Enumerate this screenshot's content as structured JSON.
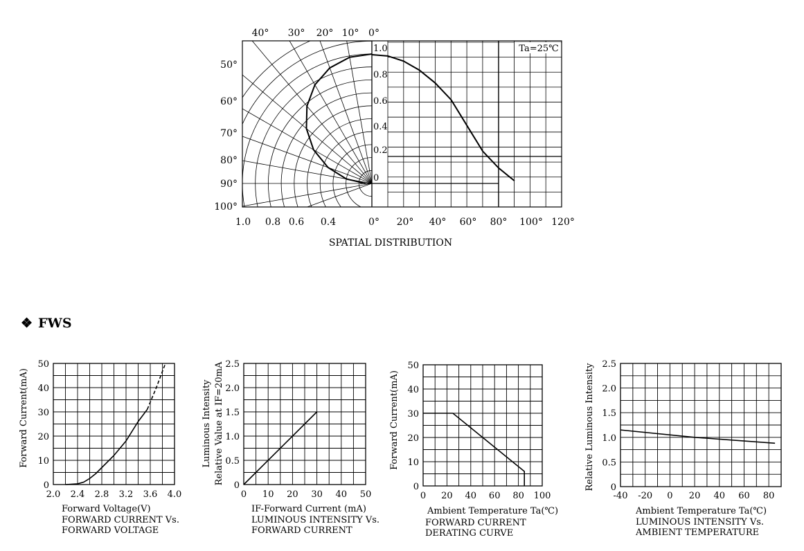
{
  "section": {
    "bullet": "❖",
    "title": "FWS"
  },
  "chart_data": [
    {
      "type": "polar-line",
      "caption": "SPATIAL DISTRIBUTION",
      "annotation": "Ta=25℃",
      "top_angle_labels": [
        "40°",
        "30°",
        "20°",
        "10°",
        "0°"
      ],
      "left_angle_labels": [
        "50°",
        "60°",
        "70°",
        "80°",
        "90°",
        "100°"
      ],
      "bottom_left_labels": [
        "1.0",
        "0.8",
        "0.6",
        "0.4"
      ],
      "bottom_right_labels": [
        "0°",
        "20°",
        "40°",
        "60°",
        "80°",
        "100°",
        "120°"
      ],
      "relative_labels": [
        "1.0",
        "0.8",
        "0.6",
        "0.4",
        "0.2",
        "0"
      ],
      "polar_curve": {
        "angle_deg": [
          0,
          10,
          20,
          30,
          40,
          50,
          60,
          70,
          80,
          90
        ],
        "relative": [
          1.0,
          0.99,
          0.95,
          0.88,
          0.78,
          0.66,
          0.52,
          0.36,
          0.2,
          0.05
        ]
      },
      "cartesian_curve": {
        "x": [
          0,
          10,
          20,
          30,
          40,
          50,
          60,
          70,
          80,
          90
        ],
        "y": [
          1.0,
          0.99,
          0.95,
          0.88,
          0.78,
          0.65,
          0.45,
          0.25,
          0.12,
          0.02
        ]
      }
    },
    {
      "type": "line",
      "title": "FORWARD CURRENT Vs.\nFORWARD VOLTAGE",
      "xlabel": "Forward Voltage(V)",
      "ylabel": "Forward Current(mA)",
      "xlim": [
        2.0,
        4.0
      ],
      "ylim": [
        0,
        50
      ],
      "xticks": [
        "2.0",
        "2.4",
        "2.8",
        "3.2",
        "3.6",
        "4.0"
      ],
      "yticks": [
        "0",
        "10",
        "20",
        "30",
        "40",
        "50"
      ],
      "series": [
        {
          "x": [
            2.2,
            2.4,
            2.5,
            2.6,
            2.7,
            2.8,
            3.0,
            3.2,
            3.4,
            3.55
          ],
          "y": [
            0,
            0.3,
            1,
            2.5,
            4.5,
            7,
            12,
            18,
            26,
            31
          ],
          "style": "solid"
        },
        {
          "x": [
            3.55,
            3.7,
            3.85
          ],
          "y": [
            31,
            40,
            50
          ],
          "style": "dashed"
        }
      ]
    },
    {
      "type": "line",
      "title": "LUMINOUS INTENSITY Vs.\nFORWARD CURRENT",
      "xlabel": "IF-Forward Current (mA)",
      "ylabel": [
        "Luminous Intensity",
        "Relative Value at IF=20mA"
      ],
      "xlim": [
        0,
        50
      ],
      "ylim": [
        0,
        2.5
      ],
      "xticks": [
        "0",
        "10",
        "20",
        "30",
        "40",
        "50"
      ],
      "yticks": [
        "0",
        "0.5",
        "1.0",
        "1.5",
        "2.0",
        "2.5"
      ],
      "series": [
        {
          "x": [
            0,
            30
          ],
          "y": [
            0,
            1.5
          ],
          "style": "solid"
        }
      ]
    },
    {
      "type": "line",
      "title": "FORWARD CURRENT\nDERATING CURVE",
      "xlabel": "Ambient Temperature Ta(℃)",
      "ylabel": "Forward Current(mA)",
      "xlim": [
        0,
        100
      ],
      "ylim": [
        0,
        50
      ],
      "xticks": [
        "0",
        "20",
        "40",
        "60",
        "80",
        "100"
      ],
      "yticks": [
        "0",
        "10",
        "20",
        "30",
        "40",
        "50"
      ],
      "series": [
        {
          "x": [
            0,
            25,
            85,
            85
          ],
          "y": [
            30,
            30,
            6,
            0
          ],
          "style": "solid"
        }
      ]
    },
    {
      "type": "line",
      "title": "LUMINOUS INTENSITY Vs.\nAMBIENT TEMPERATURE",
      "xlabel": "Ambient Temperature Ta(℃)",
      "ylabel": "Relative Luminous Intensity",
      "xlim": [
        -40,
        90
      ],
      "ylim": [
        0,
        2.5
      ],
      "xticks": [
        "-40",
        "-20",
        "0",
        "20",
        "40",
        "60",
        "80"
      ],
      "yticks": [
        "0",
        "0.5",
        "1.0",
        "1.5",
        "2.0",
        "2.5"
      ],
      "series": [
        {
          "x": [
            -40,
            20,
            85
          ],
          "y": [
            1.15,
            1.0,
            0.88
          ],
          "style": "solid"
        }
      ]
    }
  ]
}
